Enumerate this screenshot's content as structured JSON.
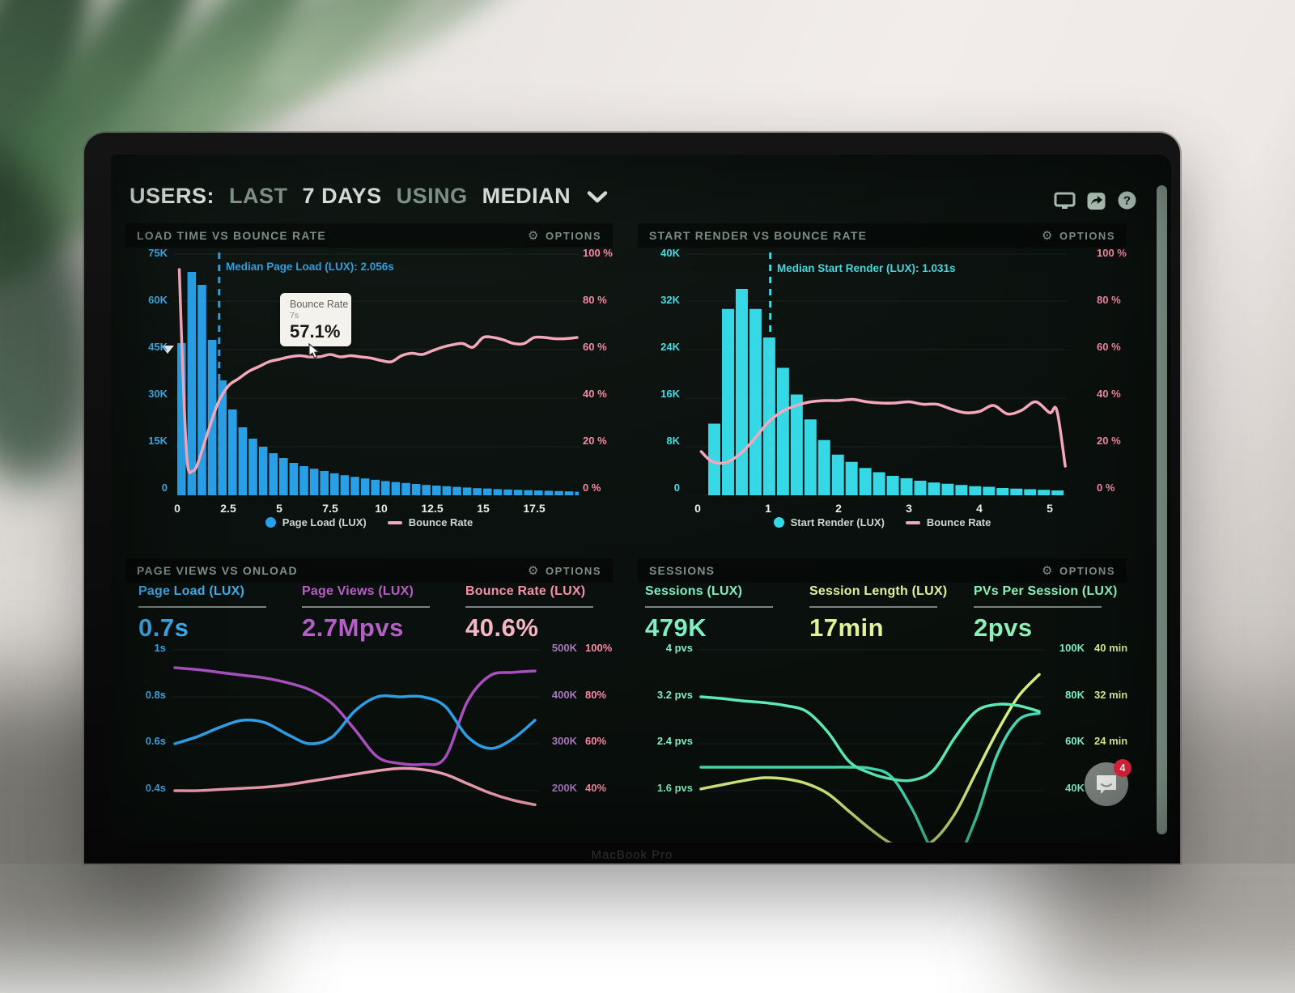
{
  "device": {
    "bezel_label": "MacBook Pro"
  },
  "header": {
    "w1": "USERS:",
    "w2": "LAST",
    "w3": "7 DAYS",
    "w4": "USING",
    "w5": "MEDIAN",
    "icons": [
      "display-icon",
      "share-icon",
      "help-icon"
    ]
  },
  "colors": {
    "bar_blue": "#28a0e8",
    "bar_cyan": "#35d9e5",
    "line_pink": "#f5a8bb",
    "line_blue": "#2e9fe6",
    "line_purple": "#a84fc0",
    "line_rose": "#f2a0b5",
    "line_mint": "#5ceab4",
    "line_teal": "#46d7b0",
    "line_yellow": "#d4ed7e",
    "median_blue": "#2f9fe0",
    "median_cyan": "#46d7e0",
    "grid": "rgba(180,200,190,0.09)"
  },
  "panels": {
    "p1": {
      "title": "LOAD TIME VS BOUNCE RATE",
      "options_label": "OPTIONS",
      "median_label": "Median Page Load (LUX): 2.056s",
      "tooltip": {
        "title": "Bounce Rate",
        "sub": "7s",
        "value": "57.1%"
      },
      "y_left": [
        "75K",
        "60K",
        "45K",
        "30K",
        "15K",
        "0"
      ],
      "y_right": [
        "100 %",
        "80 %",
        "60 %",
        "40 %",
        "20 %",
        "0 %"
      ],
      "x_ticks": [
        "0",
        "2.5",
        "5",
        "7.5",
        "10",
        "12.5",
        "15",
        "17.5"
      ],
      "legend": [
        {
          "label": "Page Load (LUX)",
          "type": "dot"
        },
        {
          "label": "Bounce Rate",
          "type": "dash"
        }
      ]
    },
    "p2": {
      "title": "START RENDER VS BOUNCE RATE",
      "options_label": "OPTIONS",
      "median_label": "Median Start Render (LUX): 1.031s",
      "y_left": [
        "40K",
        "32K",
        "24K",
        "16K",
        "8K",
        "0"
      ],
      "y_right": [
        "100 %",
        "80 %",
        "60 %",
        "40 %",
        "20 %",
        "0 %"
      ],
      "x_ticks": [
        "0",
        "1",
        "2",
        "3",
        "4",
        "5"
      ],
      "legend": [
        {
          "label": "Start Render (LUX)",
          "type": "dot"
        },
        {
          "label": "Bounce Rate",
          "type": "dash"
        }
      ]
    },
    "p3": {
      "title": "PAGE VIEWS VS ONLOAD",
      "options_label": "OPTIONS",
      "metrics": [
        {
          "label": "Page Load (LUX)",
          "value": "0.7s",
          "color": "#3dadeb"
        },
        {
          "label": "Page Views (LUX)",
          "value": "2.7Mpvs",
          "color": "#b55ec6"
        },
        {
          "label": "Bounce Rate (LUX)",
          "value": "40.6%",
          "color": "#f7b6c6"
        }
      ],
      "y_left": [
        "1s",
        "0.8s",
        "0.6s",
        "0.4s"
      ],
      "y_right_k": [
        "500K",
        "400K",
        "300K",
        "200K"
      ],
      "y_right_pct": [
        "100%",
        "80%",
        "60%",
        "40%"
      ]
    },
    "p4": {
      "title": "SESSIONS",
      "options_label": "OPTIONS",
      "metrics": [
        {
          "label": "Sessions (LUX)",
          "value": "479K",
          "color": "#7feec2"
        },
        {
          "label": "Session Length (LUX)",
          "value": "17min",
          "color": "#e2f29b"
        },
        {
          "label": "PVs Per Session (LUX)",
          "value": "2pvs",
          "color": "#8df0b9"
        }
      ],
      "y_left": [
        "4 pvs",
        "3.2 pvs",
        "2.4 pvs",
        "1.6 pvs"
      ],
      "y_right_k": [
        "100K",
        "80K",
        "60K",
        "40K"
      ],
      "y_right_min": [
        "40 min",
        "32 min",
        "24 min",
        ""
      ]
    }
  },
  "chat": {
    "badge": "4"
  },
  "chart_data": [
    {
      "id": "load_time_vs_bounce_rate",
      "type": "bar+line",
      "title": "LOAD TIME VS BOUNCE RATE",
      "x_range": [
        0,
        20
      ],
      "bar_bin": 0.5,
      "bar_start": 0,
      "ylim_left": [
        0,
        75
      ],
      "y_left_unit": "K pageviews",
      "ylim_right": [
        0,
        100
      ],
      "y_right_unit": "%",
      "median": {
        "x": 2.056,
        "label": "Median Page Load (LUX): 2.056s"
      },
      "bars_k": [
        47,
        69,
        65,
        48,
        35.5,
        26.5,
        21,
        17.5,
        15,
        13,
        11.5,
        10,
        9,
        8.2,
        7.5,
        6.8,
        6.2,
        5.7,
        5.2,
        4.8,
        4.4,
        4.1,
        3.8,
        3.5,
        3.2,
        3.0,
        2.8,
        2.6,
        2.4,
        2.2,
        2.1,
        1.9,
        1.8,
        1.7,
        1.6,
        1.5,
        1.4,
        1.3,
        1.2,
        1.1
      ],
      "bounce_line": [
        [
          0.1,
          93
        ],
        [
          0.3,
          45
        ],
        [
          0.5,
          13
        ],
        [
          0.75,
          10
        ],
        [
          1.0,
          13
        ],
        [
          1.5,
          26
        ],
        [
          2.0,
          38
        ],
        [
          2.5,
          45
        ],
        [
          3.0,
          48
        ],
        [
          3.5,
          51
        ],
        [
          4.0,
          53
        ],
        [
          4.5,
          55
        ],
        [
          5.0,
          56
        ],
        [
          5.5,
          57
        ],
        [
          6.0,
          57.5
        ],
        [
          6.5,
          57
        ],
        [
          7.0,
          57.1
        ],
        [
          7.5,
          58
        ],
        [
          8.0,
          57
        ],
        [
          8.5,
          57.5
        ],
        [
          9.0,
          57
        ],
        [
          9.5,
          56.5
        ],
        [
          10.0,
          55.5
        ],
        [
          10.5,
          55
        ],
        [
          11.0,
          57.5
        ],
        [
          11.5,
          58.5
        ],
        [
          12.0,
          58
        ],
        [
          12.5,
          59.5
        ],
        [
          13.0,
          61
        ],
        [
          13.5,
          62
        ],
        [
          14.0,
          62.5
        ],
        [
          14.5,
          61
        ],
        [
          15.0,
          65
        ],
        [
          15.5,
          65
        ],
        [
          16.0,
          64
        ],
        [
          16.5,
          62.5
        ],
        [
          17.0,
          62.5
        ],
        [
          17.5,
          65
        ],
        [
          18.0,
          65
        ],
        [
          18.5,
          64.5
        ],
        [
          19.0,
          64.5
        ],
        [
          19.6,
          65
        ]
      ]
    },
    {
      "id": "start_render_vs_bounce_rate",
      "type": "bar+line",
      "title": "START RENDER VS BOUNCE RATE",
      "x_range": [
        0,
        5.3
      ],
      "bar_bin": 0.195,
      "bar_start": 0.15,
      "ylim_left": [
        0,
        40
      ],
      "y_left_unit": "K pageviews",
      "ylim_right": [
        0,
        100
      ],
      "y_right_unit": "%",
      "median": {
        "x": 1.031,
        "label": "Median Start Render (LUX): 1.031s"
      },
      "bars_k": [
        11.8,
        30.7,
        34,
        30.7,
        26,
        21,
        16.6,
        12.5,
        9.1,
        6.7,
        5.5,
        4.5,
        3.8,
        3.2,
        2.8,
        2.4,
        2.1,
        1.9,
        1.7,
        1.5,
        1.4,
        1.2,
        1.1,
        1.0,
        0.9,
        0.8
      ],
      "bounce_line": [
        [
          0.05,
          18
        ],
        [
          0.2,
          14
        ],
        [
          0.4,
          13.5
        ],
        [
          0.6,
          17
        ],
        [
          0.8,
          23
        ],
        [
          1.0,
          30
        ],
        [
          1.2,
          34.5
        ],
        [
          1.4,
          37
        ],
        [
          1.6,
          38.5
        ],
        [
          1.8,
          39
        ],
        [
          2.0,
          39
        ],
        [
          2.2,
          39.5
        ],
        [
          2.4,
          38.5
        ],
        [
          2.6,
          38
        ],
        [
          2.8,
          38
        ],
        [
          3.0,
          38.5
        ],
        [
          3.2,
          37.5
        ],
        [
          3.4,
          37.5
        ],
        [
          3.6,
          35.5
        ],
        [
          3.8,
          34
        ],
        [
          4.0,
          34.5
        ],
        [
          4.2,
          37
        ],
        [
          4.4,
          33.5
        ],
        [
          4.6,
          35
        ],
        [
          4.8,
          38.5
        ],
        [
          5.0,
          34
        ],
        [
          5.1,
          35
        ],
        [
          5.22,
          12
        ]
      ]
    },
    {
      "id": "page_views_vs_onload",
      "type": "line",
      "title": "PAGE VIEWS VS ONLOAD",
      "axes": {
        "left_seconds": [
          0.4,
          1.0
        ],
        "right_pageviews_k": [
          200,
          500
        ],
        "right_bounce_pct": [
          40,
          100
        ]
      },
      "series": [
        {
          "name": "Page Load (s)",
          "unit": "s",
          "values": [
            0.6,
            0.63,
            0.67,
            0.7,
            0.69,
            0.64,
            0.6,
            0.63,
            0.74,
            0.8,
            0.8,
            0.8,
            0.76,
            0.63,
            0.58,
            0.62,
            0.7
          ]
        },
        {
          "name": "Page Views (K)",
          "unit": "K",
          "values": [
            462,
            458,
            452,
            446,
            440,
            430,
            415,
            385,
            330,
            272,
            258,
            256,
            270,
            390,
            445,
            452,
            455
          ]
        },
        {
          "name": "Bounce Rate (%)",
          "unit": "pct",
          "values": [
            40,
            40,
            40.5,
            41,
            41.5,
            42.5,
            44,
            45.5,
            47,
            48.5,
            49.5,
            49,
            47,
            43,
            39,
            36,
            34
          ]
        }
      ]
    },
    {
      "id": "sessions",
      "type": "line",
      "title": "SESSIONS",
      "axes": {
        "left_pvs": [
          1.6,
          4.0
        ],
        "right_sessions_k": [
          40,
          100
        ],
        "right_minutes": [
          24,
          40
        ]
      },
      "series": [
        {
          "name": "PVs Per Session (pvs)",
          "unit": "pvs",
          "values": [
            3.2,
            3.17,
            3.13,
            3.1,
            3.05,
            2.95,
            2.6,
            2.1,
            1.9,
            1.8,
            1.78,
            1.95,
            2.5,
            2.95,
            3.07,
            3.05,
            2.95
          ]
        },
        {
          "name": "Sessions (K)",
          "unit": "K",
          "values": [
            50,
            50,
            50,
            50,
            50,
            50,
            50,
            50,
            49.5,
            46,
            32,
            14,
            10,
            28,
            55,
            70,
            73
          ]
        },
        {
          "name": "Session Length (min)",
          "unit": "min",
          "values": [
            16.3,
            17,
            17.7,
            18.2,
            18,
            17.2,
            15.5,
            12.5,
            9.5,
            7,
            6,
            7.5,
            12,
            19,
            26,
            32,
            35.8
          ]
        }
      ]
    }
  ]
}
